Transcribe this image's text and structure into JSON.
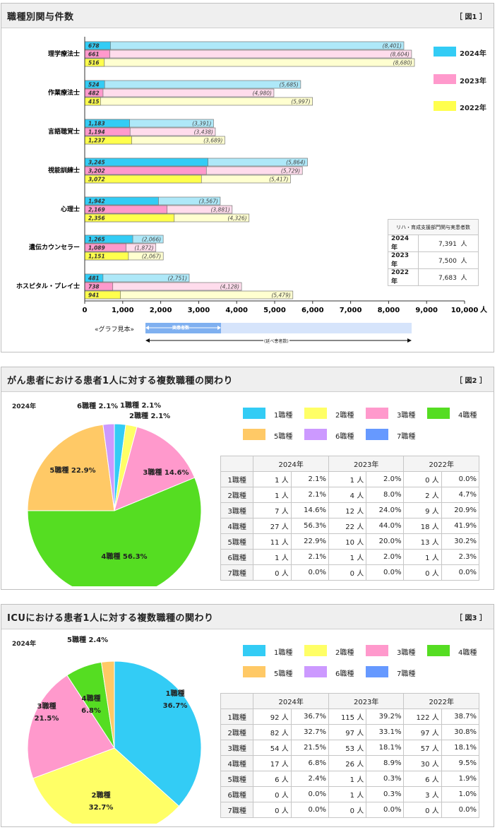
{
  "fig1": {
    "title": "職種別関与件数",
    "tag": "［ 図1 ］",
    "unit": "人",
    "legend": [
      {
        "label": "2024年",
        "color": "#33ccf5"
      },
      {
        "label": "2023年",
        "color": "#ff99cc"
      },
      {
        "label": "2022年",
        "color": "#ffff4d"
      }
    ],
    "totals": {
      "header": "リハ・育成支援部門関与実患者数",
      "rows": [
        {
          "year": "2024年",
          "value": "7,391",
          "unit": "人"
        },
        {
          "year": "2023年",
          "value": "7,500",
          "unit": "人"
        },
        {
          "year": "2022年",
          "value": "7,683",
          "unit": "人"
        }
      ]
    },
    "sample": {
      "label": "«グラフ見本»",
      "solid_label": "実患者数",
      "total_label": "(延べ患者数)"
    }
  },
  "fig2": {
    "title": "がん患者における患者1人に対する複数職種の関わり",
    "tag": "［ 図2 ］",
    "year_label": "2024年"
  },
  "fig3": {
    "title": "ICUにおける患者1人に対する複数職種の関わり",
    "tag": "［ 図3 ］",
    "year_label": "2024年"
  },
  "pie_legend": [
    {
      "label": "1職種",
      "color": "#33ccf5"
    },
    {
      "label": "2職種",
      "color": "#ffff66"
    },
    {
      "label": "3職種",
      "color": "#ff99cc"
    },
    {
      "label": "4職種",
      "color": "#55dd22"
    },
    {
      "label": "5職種",
      "color": "#ffc966"
    },
    {
      "label": "6職種",
      "color": "#cc99ff"
    },
    {
      "label": "7職種",
      "color": "#6699ff"
    }
  ],
  "chart_data": [
    {
      "type": "bar",
      "orientation": "horizontal",
      "title": "職種別関与件数",
      "categories": [
        "理学療法士",
        "作業療法士",
        "言語聴覚士",
        "視能訓練士",
        "心理士",
        "遺伝カウンセラー",
        "ホスピタル・プレイ士"
      ],
      "series": [
        {
          "name": "2024年",
          "values": [
            678,
            524,
            1183,
            3245,
            1942,
            1265,
            481
          ],
          "totals": [
            8401,
            5685,
            3391,
            5864,
            3567,
            2066,
            2751
          ],
          "color": "#33ccf5",
          "light": "#aee8f8",
          "value_labels": [
            "678",
            "524",
            "1,183",
            "3,245",
            "1,942",
            "1,265",
            "481"
          ],
          "total_labels": [
            "(8,401)",
            "(5,685)",
            "(3,391)",
            "(5,864)",
            "(3,567)",
            "(2,066)",
            "(2,751)"
          ]
        },
        {
          "name": "2023年",
          "values": [
            661,
            482,
            1194,
            3202,
            2169,
            1089,
            738
          ],
          "totals": [
            8604,
            4980,
            3438,
            5729,
            3881,
            1872,
            4128
          ],
          "color": "#ff99cc",
          "light": "#ffdcec",
          "value_labels": [
            "661",
            "482",
            "1,194",
            "3,202",
            "2,169",
            "1,089",
            "738"
          ],
          "total_labels": [
            "(8,604)",
            "(4,980)",
            "(3,438)",
            "(5,729)",
            "(3,881)",
            "(1,872)",
            "(4,128)"
          ]
        },
        {
          "name": "2022年",
          "values": [
            516,
            415,
            1237,
            3072,
            2356,
            1151,
            941
          ],
          "totals": [
            8680,
            5997,
            3689,
            5417,
            4326,
            2067,
            5479
          ],
          "color": "#ffff4d",
          "light": "#ffffd0",
          "value_labels": [
            "516",
            "415",
            "1,237",
            "3,072",
            "2,356",
            "1,151",
            "941"
          ],
          "total_labels": [
            "(8,680)",
            "(5,997)",
            "(3,689)",
            "(5,417)",
            "(4,326)",
            "(2,067)",
            "(5,479)"
          ]
        }
      ],
      "xlim": [
        0,
        10000
      ],
      "xticks": [
        "0",
        "1,000",
        "2,000",
        "3,000",
        "4,000",
        "5,000",
        "6,000",
        "7,000",
        "8,000",
        "9,000",
        "10,000"
      ],
      "xlabel": "人"
    },
    {
      "type": "pie",
      "title": "がん患者における患者1人に対する複数職種の関わり",
      "categories": [
        "1職種",
        "2職種",
        "3職種",
        "4職種",
        "5職種",
        "6職種",
        "7職種"
      ],
      "values": [
        2.1,
        2.1,
        14.6,
        56.3,
        22.9,
        2.1,
        0
      ],
      "labels": [
        "1職種 2.1%",
        "2職種 2.1%",
        "3職種 14.6%",
        "4職種 56.3%",
        "5職種 22.9%",
        "6職種 2.1%",
        ""
      ],
      "table": {
        "years": [
          "2024年",
          "2023年",
          "2022年"
        ],
        "rows": [
          {
            "label": "1職種",
            "cells": [
              "1 人",
              "2.1%",
              "1 人",
              "2.0%",
              "0 人",
              "0.0%"
            ]
          },
          {
            "label": "2職種",
            "cells": [
              "1 人",
              "2.1%",
              "4 人",
              "8.0%",
              "2 人",
              "4.7%"
            ]
          },
          {
            "label": "3職種",
            "cells": [
              "7 人",
              "14.6%",
              "12 人",
              "24.0%",
              "9 人",
              "20.9%"
            ]
          },
          {
            "label": "4職種",
            "cells": [
              "27 人",
              "56.3%",
              "22 人",
              "44.0%",
              "18 人",
              "41.9%"
            ]
          },
          {
            "label": "5職種",
            "cells": [
              "11 人",
              "22.9%",
              "10 人",
              "20.0%",
              "13 人",
              "30.2%"
            ]
          },
          {
            "label": "6職種",
            "cells": [
              "1 人",
              "2.1%",
              "1 人",
              "2.0%",
              "1 人",
              "2.3%"
            ]
          },
          {
            "label": "7職種",
            "cells": [
              "0 人",
              "0.0%",
              "0 人",
              "0.0%",
              "0 人",
              "0.0%"
            ]
          }
        ]
      }
    },
    {
      "type": "pie",
      "title": "ICUにおける患者1人に対する複数職種の関わり",
      "categories": [
        "1職種",
        "2職種",
        "3職種",
        "4職種",
        "5職種",
        "6職種",
        "7職種"
      ],
      "values": [
        36.7,
        32.7,
        21.5,
        6.8,
        2.4,
        0,
        0
      ],
      "labels": [
        "1職種\n36.7%",
        "2職種\n32.7%",
        "3職種\n21.5%",
        "4職種\n6.8%",
        "5職種 2.4%",
        "",
        ""
      ],
      "table": {
        "years": [
          "2024年",
          "2023年",
          "2022年"
        ],
        "rows": [
          {
            "label": "1職種",
            "cells": [
              "92 人",
              "36.7%",
              "115 人",
              "39.2%",
              "122 人",
              "38.7%"
            ]
          },
          {
            "label": "2職種",
            "cells": [
              "82 人",
              "32.7%",
              "97 人",
              "33.1%",
              "97 人",
              "30.8%"
            ]
          },
          {
            "label": "3職種",
            "cells": [
              "54 人",
              "21.5%",
              "53 人",
              "18.1%",
              "57 人",
              "18.1%"
            ]
          },
          {
            "label": "4職種",
            "cells": [
              "17 人",
              "6.8%",
              "26 人",
              "8.9%",
              "30 人",
              "9.5%"
            ]
          },
          {
            "label": "5職種",
            "cells": [
              "6 人",
              "2.4%",
              "1 人",
              "0.3%",
              "6 人",
              "1.9%"
            ]
          },
          {
            "label": "6職種",
            "cells": [
              "0 人",
              "0.0%",
              "1 人",
              "0.3%",
              "3 人",
              "1.0%"
            ]
          },
          {
            "label": "7職種",
            "cells": [
              "0 人",
              "0.0%",
              "0 人",
              "0.0%",
              "0 人",
              "0.0%"
            ]
          }
        ]
      }
    }
  ]
}
